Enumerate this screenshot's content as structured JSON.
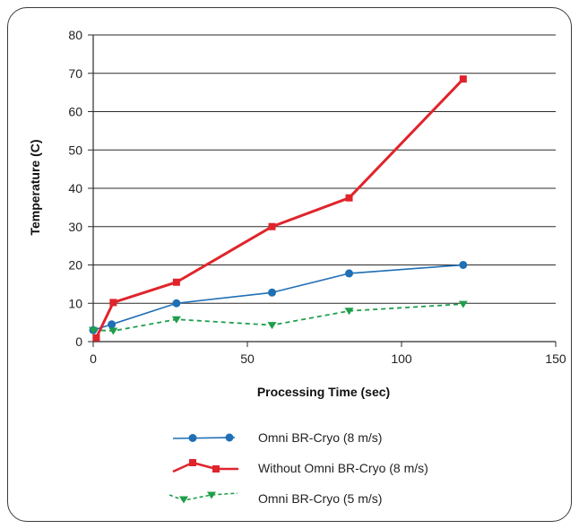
{
  "chart_data": {
    "type": "line",
    "title": "",
    "xlabel": "Processing Time (sec)",
    "ylabel": "Temperature (C)",
    "xlim": [
      0,
      150
    ],
    "ylim": [
      0,
      80
    ],
    "xticks": [
      0,
      50,
      100,
      150
    ],
    "yticks": [
      0,
      10,
      20,
      30,
      40,
      50,
      60,
      70,
      80
    ],
    "grid": "horizontal",
    "legend_position": "bottom",
    "series": [
      {
        "name": "Omni BR-Cryo (8 m/s)",
        "color": "#1f6fb5",
        "marker": "circle",
        "line_style": "solid",
        "points": [
          [
            0,
            3
          ],
          [
            6,
            4.5
          ],
          [
            27,
            10
          ],
          [
            58,
            12.8
          ],
          [
            83,
            17.8
          ],
          [
            120,
            20
          ]
        ]
      },
      {
        "name": "Without Omni BR-Cryo (8 m/s)",
        "color": "#e0242c",
        "marker": "square",
        "line_style": "solid",
        "points": [
          [
            1,
            1
          ],
          [
            6.5,
            10.2
          ],
          [
            27,
            15.5
          ],
          [
            58,
            30
          ],
          [
            83,
            37.5
          ],
          [
            120,
            68.5
          ]
        ]
      },
      {
        "name": "Omni BR-Cryo (5 m/s)",
        "color": "#1f9e4a",
        "marker": "triangle-down",
        "line_style": "dashed",
        "points": [
          [
            0,
            3
          ],
          [
            6.5,
            2.8
          ],
          [
            27,
            5.8
          ],
          [
            58,
            4.3
          ],
          [
            83,
            8
          ],
          [
            120,
            9.8
          ]
        ]
      }
    ]
  }
}
